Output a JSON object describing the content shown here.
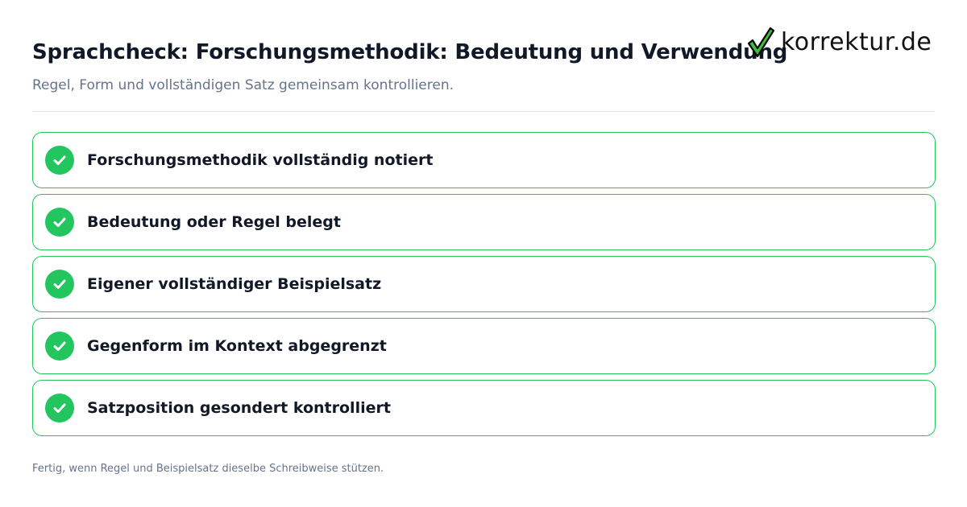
{
  "header": {
    "title": "Sprachcheck: Forschungsmethodik: Bedeutung und Verwendung",
    "subtitle": "Regel, Form und vollständigen Satz gemeinsam kontrollieren."
  },
  "logo": {
    "text": "korrektur.de",
    "icon": "checkmark-icon"
  },
  "checklist": {
    "items": [
      {
        "label": "Forschungsmethodik vollständig notiert",
        "checked": true
      },
      {
        "label": "Bedeutung oder Regel belegt",
        "checked": true
      },
      {
        "label": "Eigener vollständiger Beispielsatz",
        "checked": true
      },
      {
        "label": "Gegenform im Kontext abgegrenzt",
        "checked": true
      },
      {
        "label": "Satzposition gesondert kontrolliert",
        "checked": true
      }
    ]
  },
  "footer": {
    "note": "Fertig, wenn Regel und Beispielsatz dieselbe Schreibweise stützen."
  },
  "colors": {
    "accent": "#22c55e",
    "text": "#111827",
    "muted": "#64748b"
  }
}
